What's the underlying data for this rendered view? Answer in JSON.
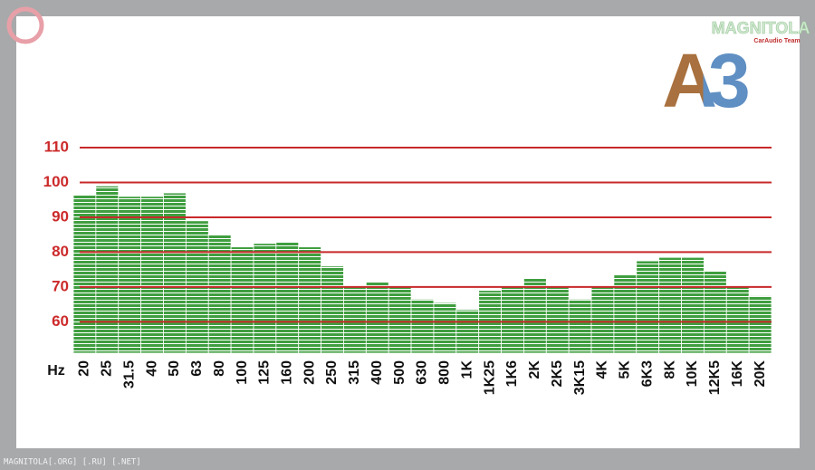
{
  "chart_data": {
    "type": "bar",
    "categories": [
      "20",
      "25",
      "31.5",
      "40",
      "50",
      "63",
      "80",
      "100",
      "125",
      "160",
      "200",
      "250",
      "315",
      "400",
      "500",
      "630",
      "800",
      "1K",
      "1K25",
      "1K6",
      "2K",
      "2K5",
      "3K15",
      "4K",
      "5K",
      "6K3",
      "8K",
      "10K",
      "12K5",
      "16K",
      "20K"
    ],
    "values": [
      96.5,
      99,
      96,
      96,
      97,
      89,
      85,
      81.5,
      82.5,
      83,
      81.5,
      76,
      70,
      71.5,
      70,
      66.5,
      65.5,
      63.5,
      69,
      70,
      72.5,
      70,
      66.5,
      70,
      73.5,
      77.5,
      78.5,
      78.5,
      74.5,
      70,
      67.5
    ],
    "color": "#3f9e3f",
    "grid_color": "#c8282a",
    "x_label": "Hz",
    "ylim": [
      51,
      110
    ],
    "yticks": [
      60,
      70,
      80,
      90,
      100,
      110
    ],
    "grid": true
  },
  "logo": {
    "brand": "MAGNITOLA",
    "tagline": "CarAudio Team"
  },
  "badge": "A3",
  "footer": "MAGNITOLA[.ORG] [.RU] [.NET]"
}
